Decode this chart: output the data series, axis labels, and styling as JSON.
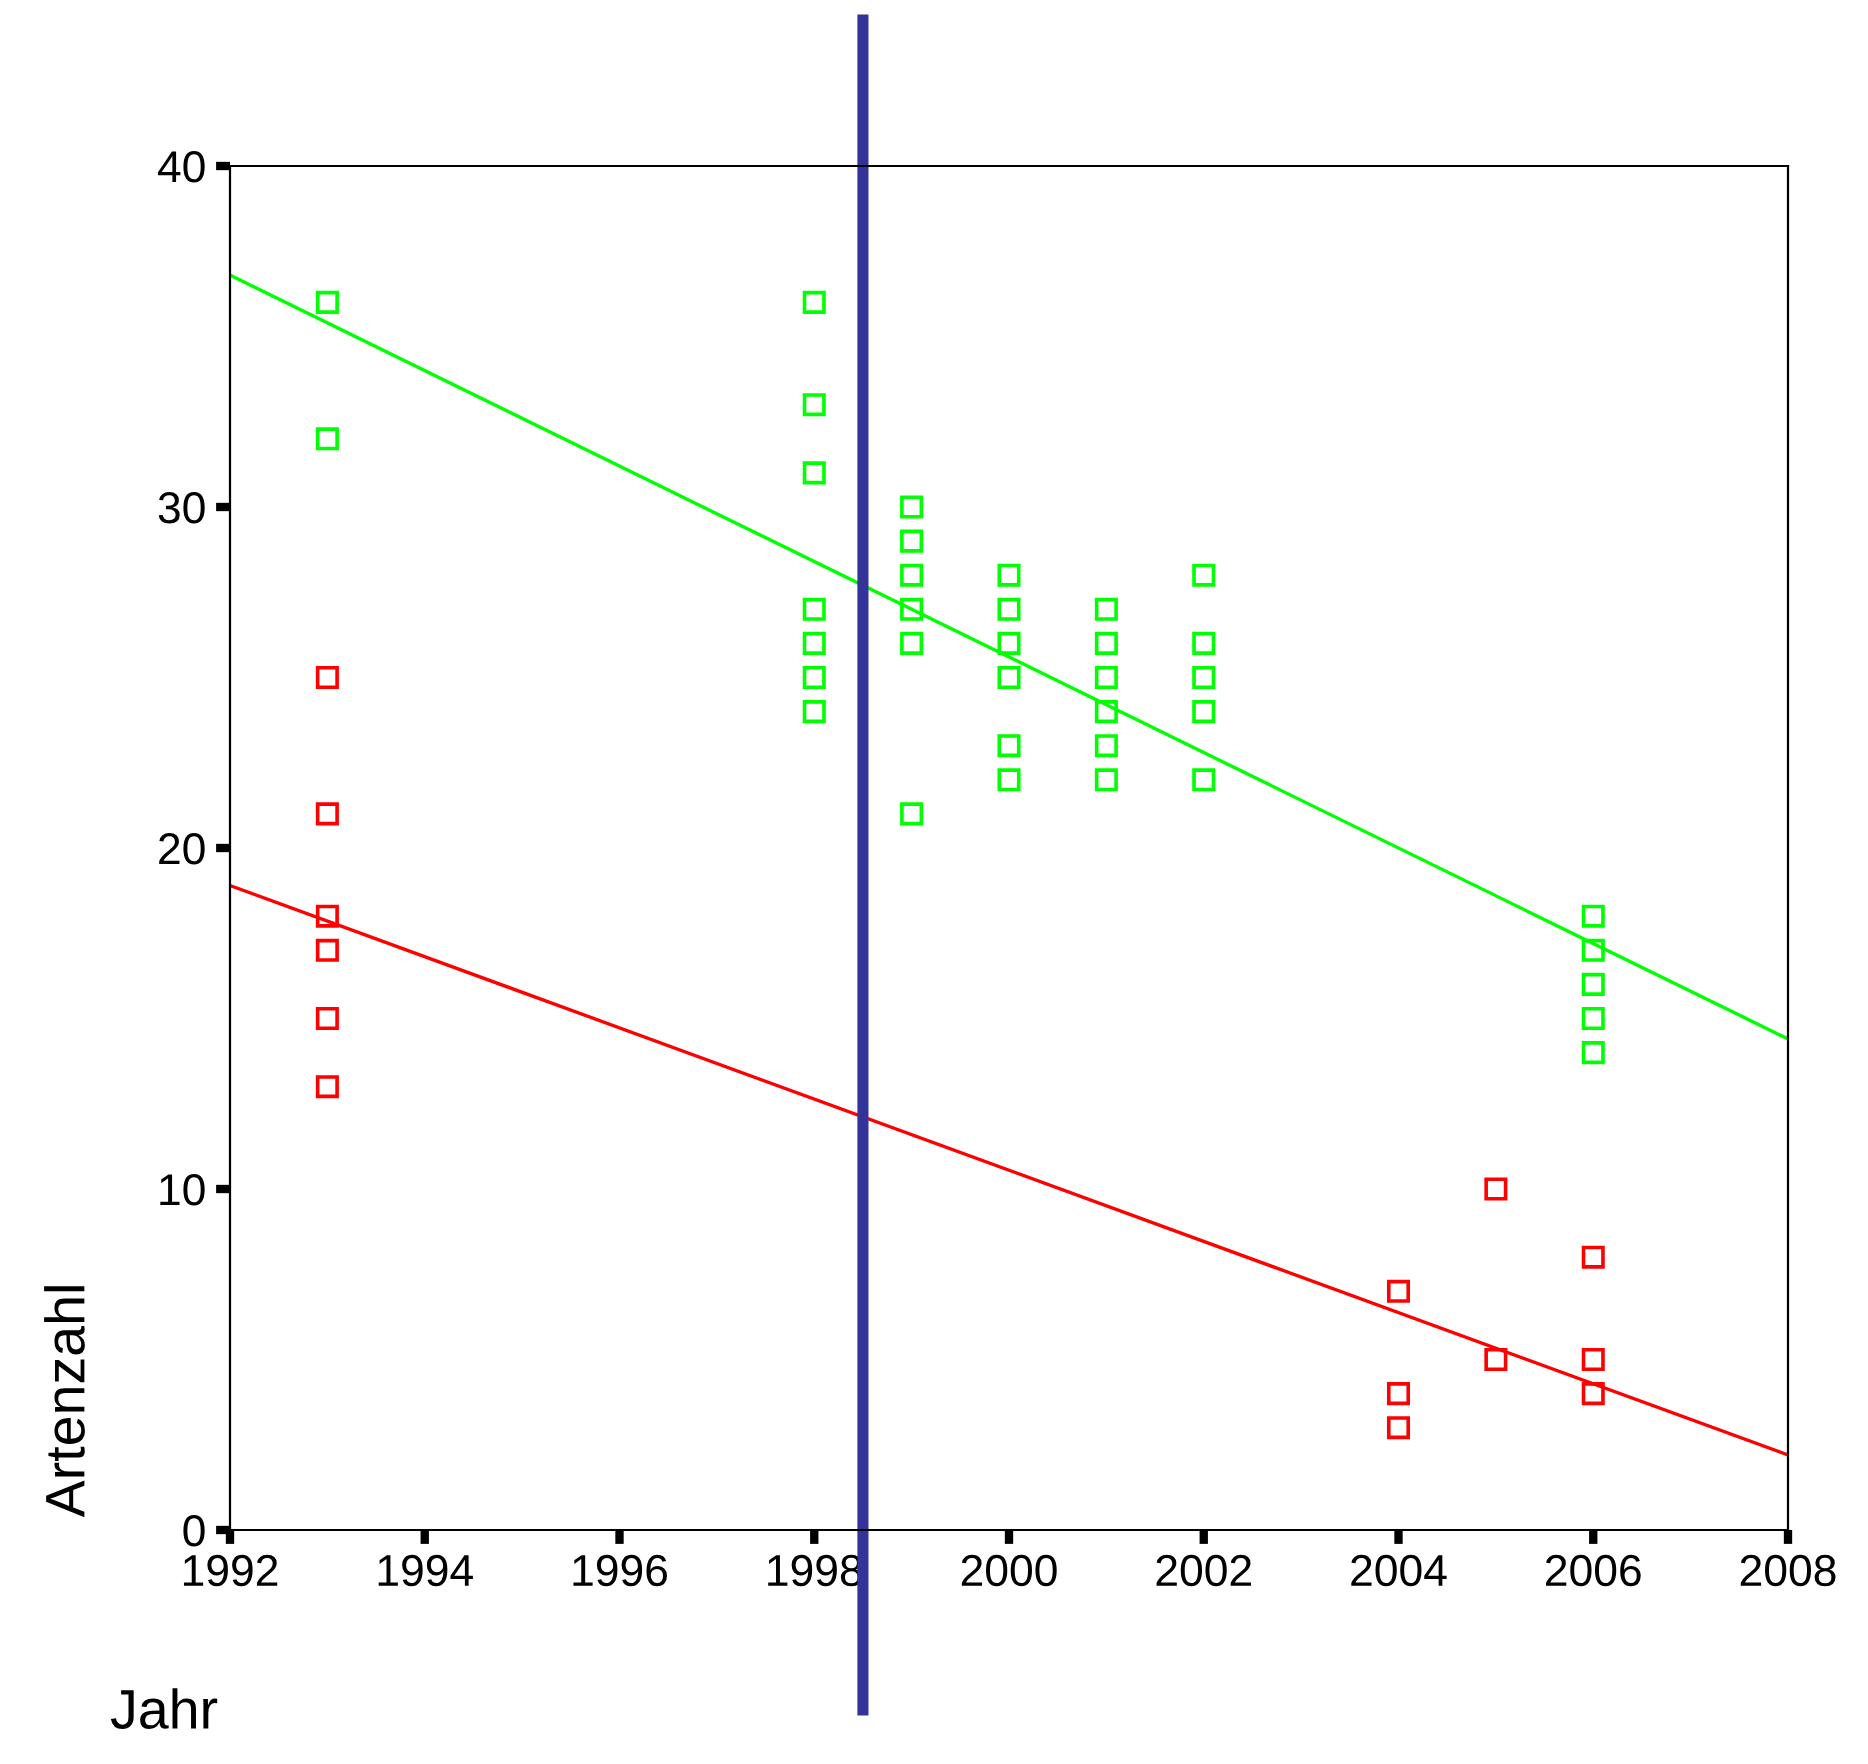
{
  "chart_data": {
    "type": "scatter",
    "xlabel": "Jahr",
    "ylabel": "Artenzahl",
    "marker": "square",
    "grid": false,
    "legend": false,
    "xlim": [
      1992,
      2008
    ],
    "xticks": [
      1992,
      1994,
      1996,
      1998,
      2000,
      2002,
      2004,
      2006,
      2008
    ],
    "ylim": [
      0,
      40
    ],
    "yticks": [
      0,
      10,
      20,
      30,
      40
    ],
    "series": [
      {
        "color": "#00ff00",
        "x": [
          1993,
          1993,
          1998,
          1998,
          1998,
          1998,
          1998,
          1998,
          1998,
          1999,
          1999,
          1999,
          1999,
          1999,
          1999,
          2000,
          2000,
          2000,
          2000,
          2000,
          2000,
          2001,
          2001,
          2001,
          2001,
          2001,
          2001,
          2002,
          2002,
          2002,
          2002,
          2002,
          2006,
          2006,
          2006,
          2006,
          2006
        ],
        "values": [
          36,
          32,
          36,
          33,
          31,
          27,
          26,
          25,
          24,
          30,
          29,
          28,
          27,
          26,
          21,
          28,
          27,
          26,
          25,
          23,
          22,
          27,
          26,
          25,
          24,
          23,
          22,
          28,
          26,
          25,
          24,
          22,
          18,
          17,
          16,
          15,
          14
        ]
      },
      {
        "color": "#ff0000",
        "x": [
          1993,
          1993,
          1993,
          1993,
          1993,
          1993,
          2004,
          2004,
          2004,
          2005,
          2005,
          2006,
          2006,
          2006
        ],
        "values": [
          25,
          21,
          18,
          17,
          15,
          13,
          7,
          4,
          3,
          10,
          5,
          8,
          5,
          4
        ]
      },
      {
        "type": "line",
        "marker": "none",
        "color": "#00ff00",
        "x": [
          1992,
          2008
        ],
        "values": [
          36.8,
          14.4
        ]
      },
      {
        "type": "line",
        "marker": "none",
        "color": "#ff0000",
        "x": [
          1992,
          2008
        ],
        "values": [
          18.9,
          2.2
        ]
      }
    ],
    "ref_lines": [
      {
        "axis": "x",
        "value": 1998.5,
        "color": "#333399",
        "line_style": "solid"
      }
    ]
  }
}
